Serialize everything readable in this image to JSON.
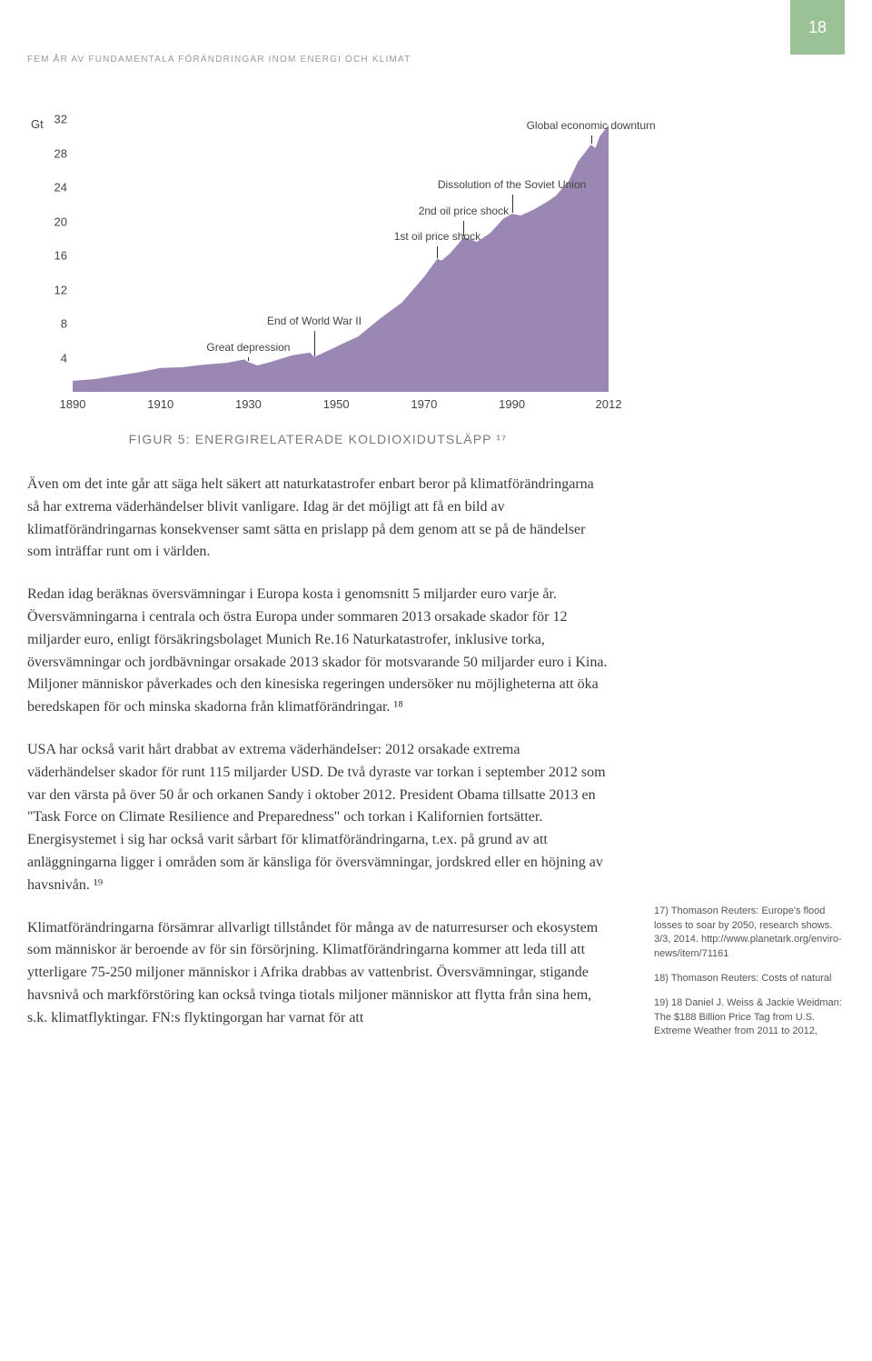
{
  "page_number": "18",
  "running_header": "FEM ÅR AV FUNDAMENTALA FÖRÄNDRINGAR INOM ENERGI OCH KLIMAT",
  "chart": {
    "type": "area",
    "y_unit": "Gt",
    "y_ticks": [
      4,
      8,
      12,
      16,
      20,
      24,
      28,
      32
    ],
    "ylim": [
      0,
      32
    ],
    "x_ticks": [
      1890,
      1910,
      1930,
      1950,
      1970,
      1990,
      2012
    ],
    "xlim": [
      1890,
      2012
    ],
    "fill_color": "#9b87b3",
    "axis_color": "#333333",
    "text_color": "#444444",
    "events": [
      {
        "label": "Great depression",
        "x": 1930,
        "top_y": 4
      },
      {
        "label": "End of World War II",
        "x": 1945,
        "top_y": 7
      },
      {
        "label": "1st oil price shock",
        "x": 1973,
        "top_y": 17
      },
      {
        "label": "2nd oil price shock",
        "x": 1979,
        "top_y": 20
      },
      {
        "label": "Dissolution of the Soviet Union",
        "x": 1990,
        "top_y": 23
      },
      {
        "label": "Global economic downturn",
        "x": 2008,
        "top_y": 30
      }
    ],
    "series": [
      {
        "x": 1890,
        "y": 1.3
      },
      {
        "x": 1895,
        "y": 1.5
      },
      {
        "x": 1900,
        "y": 1.9
      },
      {
        "x": 1905,
        "y": 2.3
      },
      {
        "x": 1910,
        "y": 2.8
      },
      {
        "x": 1915,
        "y": 2.9
      },
      {
        "x": 1920,
        "y": 3.2
      },
      {
        "x": 1925,
        "y": 3.4
      },
      {
        "x": 1929,
        "y": 3.8
      },
      {
        "x": 1930,
        "y": 3.5
      },
      {
        "x": 1932,
        "y": 3.1
      },
      {
        "x": 1935,
        "y": 3.5
      },
      {
        "x": 1940,
        "y": 4.3
      },
      {
        "x": 1944,
        "y": 4.6
      },
      {
        "x": 1945,
        "y": 4.1
      },
      {
        "x": 1948,
        "y": 4.8
      },
      {
        "x": 1950,
        "y": 5.3
      },
      {
        "x": 1955,
        "y": 6.5
      },
      {
        "x": 1960,
        "y": 8.6
      },
      {
        "x": 1965,
        "y": 10.5
      },
      {
        "x": 1970,
        "y": 13.5
      },
      {
        "x": 1973,
        "y": 15.6
      },
      {
        "x": 1974,
        "y": 15.4
      },
      {
        "x": 1976,
        "y": 16.3
      },
      {
        "x": 1979,
        "y": 18.1
      },
      {
        "x": 1980,
        "y": 18.0
      },
      {
        "x": 1982,
        "y": 17.6
      },
      {
        "x": 1985,
        "y": 18.6
      },
      {
        "x": 1988,
        "y": 20.3
      },
      {
        "x": 1990,
        "y": 20.9
      },
      {
        "x": 1992,
        "y": 20.7
      },
      {
        "x": 1995,
        "y": 21.4
      },
      {
        "x": 1998,
        "y": 22.3
      },
      {
        "x": 2000,
        "y": 23.0
      },
      {
        "x": 2003,
        "y": 24.8
      },
      {
        "x": 2005,
        "y": 27.0
      },
      {
        "x": 2008,
        "y": 29.0
      },
      {
        "x": 2009,
        "y": 28.6
      },
      {
        "x": 2010,
        "y": 30.0
      },
      {
        "x": 2012,
        "y": 31.3
      }
    ]
  },
  "figure_caption": "FIGUR 5: ENERGIRELATERADE KOLDIOXIDUTSLÄPP ¹⁷",
  "paragraphs": {
    "p1": "Även om det inte går att säga helt säkert att naturkatastrofer enbart beror på klimatförändringarna så har extrema väderhändelser blivit vanligare. Idag är det möjligt att få en bild av klimatförändringarnas konsekvenser samt sätta en prislapp på dem genom att se på de händelser som inträffar runt om i världen.",
    "p2": "Redan idag beräknas översvämningar i Europa kosta i genomsnitt 5 miljarder euro varje år. Översvämningarna i centrala och östra Europa under sommaren 2013 orsakade skador för 12 miljarder euro, enligt försäkringsbolaget Munich Re.16 Naturkatastrofer, inklusive torka, översvämningar och jordbävningar orsakade 2013 skador för motsvarande 50 miljarder euro i Kina. Miljoner människor påverkades och den kinesiska regeringen undersöker nu möjligheterna att öka beredskapen för och minska skadorna från klimatförändringar. ¹⁸",
    "p3": "USA har också varit hårt drabbat av extrema väderhändelser: 2012 orsakade extrema väderhändelser skador för runt 115 miljarder USD. De två dyraste var torkan i september 2012 som var den värsta på över 50 år och orkanen Sandy i oktober 2012. President Obama tillsatte 2013 en \"Task Force on Climate Resilience and Preparedness\" och torkan i Kalifornien fortsätter. Energisystemet i sig har också varit sårbart för klimatförändringarna, t.ex. på grund av att anläggningarna ligger i områden som är känsliga för översvämningar, jordskred eller en höjning av havsnivån. ¹⁹",
    "p4": "Klimatförändringarna försämrar allvarligt tillståndet för många av de naturresurser och ekosystem som människor är beroende av för sin försörjning. Klimatförändringarna kommer att leda till att ytterligare 75-250 miljoner människor i Afrika drabbas av vattenbrist. Översvämningar, stigande havsnivå och markförstöring kan också tvinga tiotals miljoner människor att flytta från sina hem, s.k. klimatflyktingar. FN:s flyktingorgan har varnat för att"
  },
  "footnotes": {
    "f1": "17) Thomason Reuters: Europe's flood losses to soar by 2050, research shows. 3/3, 2014. http://www.planetark.org/enviro-news/item/71161",
    "f2": "18) Thomason Reuters: Costs of natural",
    "f3": "19) 18 Daniel J. Weiss & Jackie Weidman: The $188 Billion Price Tag from U.S. Extreme Weather from 2011 to 2012,"
  }
}
